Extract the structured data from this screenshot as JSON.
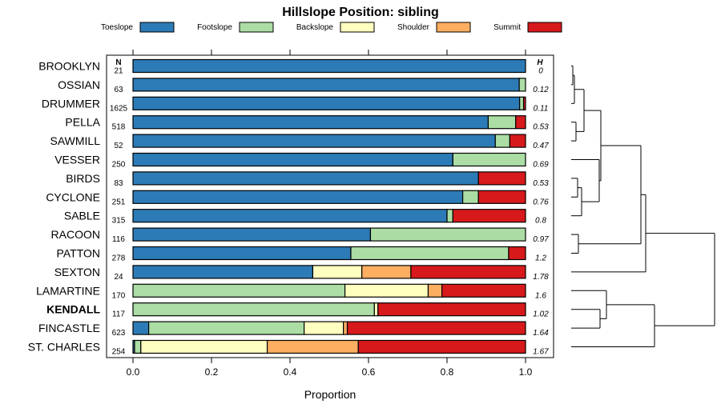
{
  "chart_data": {
    "type": "bar",
    "orientation": "horizontal",
    "stacked": true,
    "title": "Hillslope Position: sibling",
    "xlabel": "Proportion",
    "xlim": [
      0,
      1
    ],
    "x_ticks": [
      "0.0",
      "0.2",
      "0.4",
      "0.6",
      "0.8",
      "1.0"
    ],
    "n_header": "N",
    "h_header": "H",
    "highlighted": "KENDALL",
    "legend_position": "top",
    "legend": [
      {
        "name": "Toeslope",
        "color": "#2c7bb6"
      },
      {
        "name": "Footslope",
        "color": "#abdda4"
      },
      {
        "name": "Backslope",
        "color": "#ffffbf"
      },
      {
        "name": "Shoulder",
        "color": "#fdae61"
      },
      {
        "name": "Summit",
        "color": "#d7191c"
      }
    ],
    "categories": [
      "BROOKLYN",
      "OSSIAN",
      "DRUMMER",
      "PELLA",
      "SAWMILL",
      "VESSER",
      "BIRDS",
      "CYCLONE",
      "SABLE",
      "RACOON",
      "PATTON",
      "SEXTON",
      "LAMARTINE",
      "KENDALL",
      "FINCASTLE",
      "ST. CHARLES"
    ],
    "n": [
      "21",
      "63",
      "1625",
      "518",
      "52",
      "250",
      "83",
      "251",
      "315",
      "116",
      "278",
      "24",
      "170",
      "117",
      "623",
      "254"
    ],
    "h": [
      "0",
      "0.12",
      "0.11",
      "0.53",
      "0.47",
      "0.69",
      "0.53",
      "0.76",
      "0.8",
      "0.97",
      "1.2",
      "1.78",
      "1.6",
      "1.02",
      "1.64",
      "1.67"
    ],
    "series": [
      {
        "name": "Toeslope",
        "values": [
          1.0,
          0.984,
          0.985,
          0.905,
          0.923,
          0.815,
          0.88,
          0.84,
          0.8,
          0.605,
          0.555,
          0.458,
          0.0,
          0.0,
          0.04,
          0.004
        ]
      },
      {
        "name": "Footslope",
        "values": [
          0.0,
          0.016,
          0.01,
          0.07,
          0.037,
          0.185,
          0.0,
          0.04,
          0.015,
          0.395,
          0.402,
          0.0,
          0.54,
          0.615,
          0.396,
          0.016
        ]
      },
      {
        "name": "Backslope",
        "values": [
          0.0,
          0.0,
          0.0,
          0.0,
          0.0,
          0.0,
          0.0,
          0.0,
          0.0,
          0.0,
          0.0,
          0.125,
          0.212,
          0.009,
          0.1,
          0.322
        ]
      },
      {
        "name": "Shoulder",
        "values": [
          0.0,
          0.0,
          0.0,
          0.0,
          0.0,
          0.0,
          0.0,
          0.0,
          0.0,
          0.0,
          0.0,
          0.125,
          0.035,
          0.0,
          0.01,
          0.232
        ]
      },
      {
        "name": "Summit",
        "values": [
          0.0,
          0.0,
          0.005,
          0.025,
          0.04,
          0.0,
          0.12,
          0.12,
          0.185,
          0.0,
          0.043,
          0.292,
          0.213,
          0.376,
          0.454,
          0.426
        ]
      }
    ]
  }
}
